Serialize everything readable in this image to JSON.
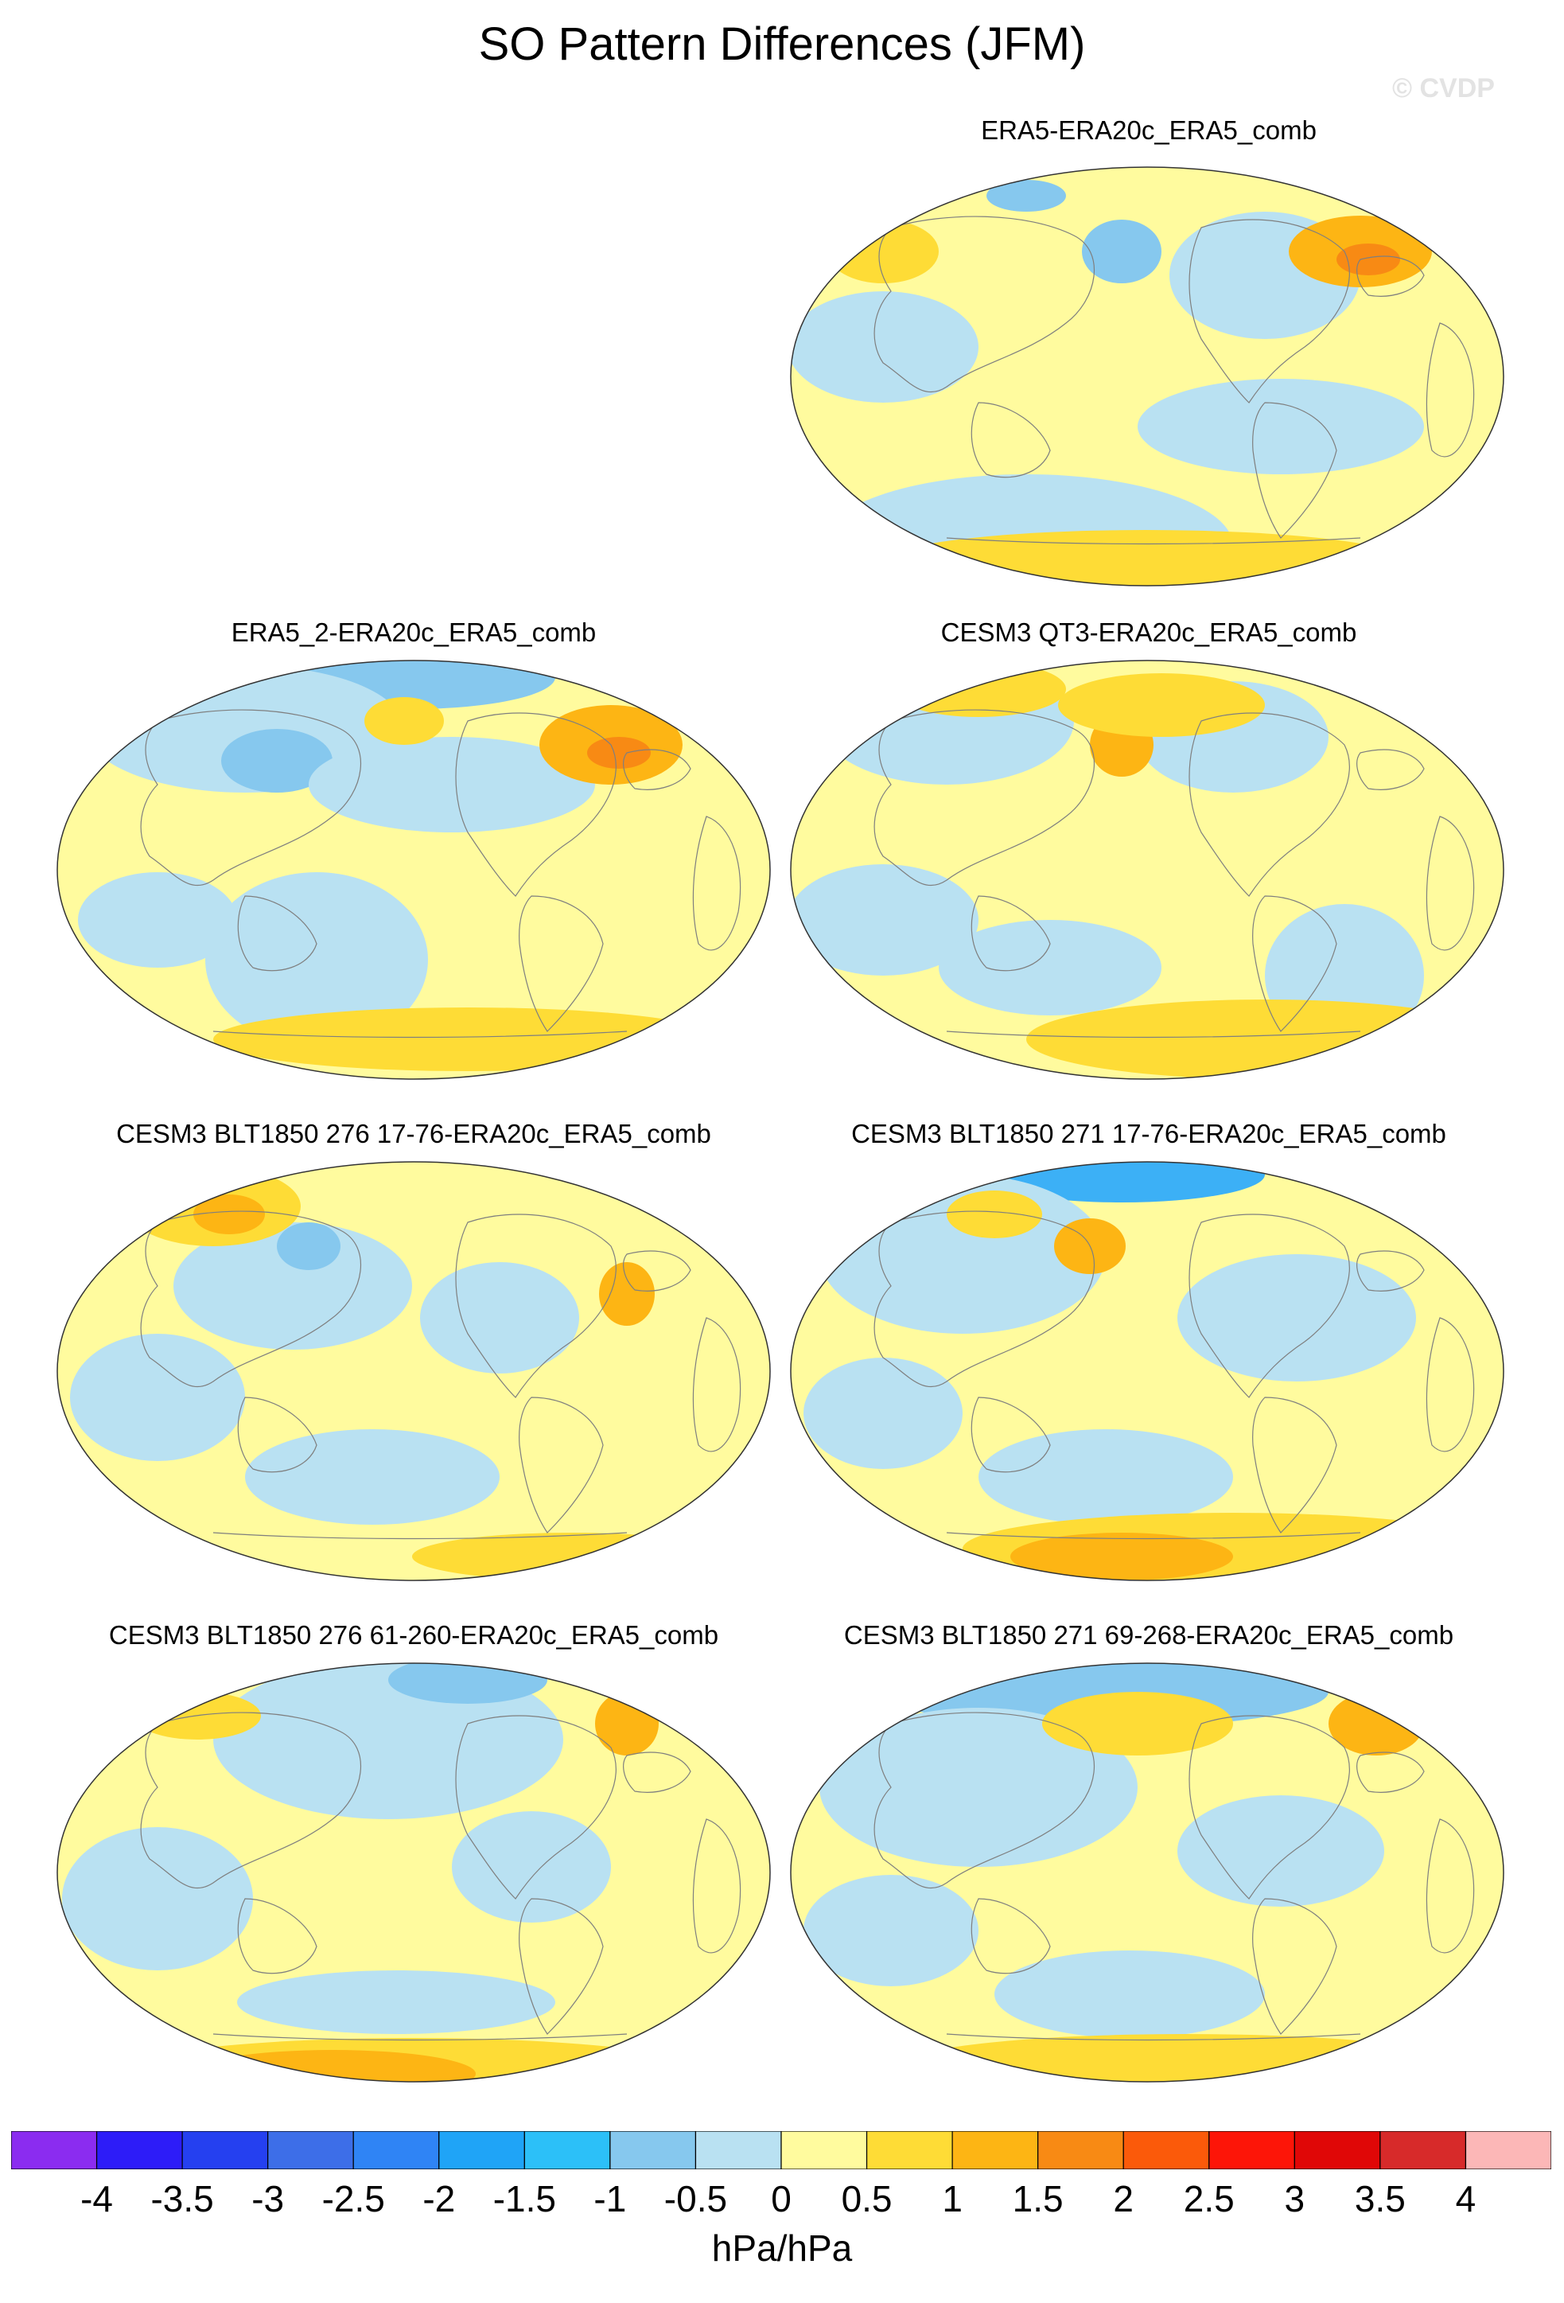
{
  "title": "SO Pattern Differences (JFM)",
  "watermark": "© CVDP",
  "colors": {
    "light_yellow": "#fffb9e",
    "yellow": "#fedc36",
    "orange": "#fdb514",
    "dark_orange": "#f88a14",
    "light_blue": "#b9e1f2",
    "blue": "#86c8ee",
    "mid_blue": "#3cb0f6",
    "coast": "#7f7f7f"
  },
  "panels": [
    {
      "title": "ERA5-ERA20c_ERA5_comb"
    },
    {
      "title": "ERA5_2-ERA20c_ERA5_comb"
    },
    {
      "title": "CESM3 QT3-ERA20c_ERA5_comb"
    },
    {
      "title": "CESM3 BLT1850 276 17-76-ERA20c_ERA5_comb"
    },
    {
      "title": "CESM3 BLT1850 271 17-76-ERA20c_ERA5_comb"
    },
    {
      "title": "CESM3 BLT1850 276 61-260-ERA20c_ERA5_comb"
    },
    {
      "title": "CESM3 BLT1850 271 69-268-ERA20c_ERA5_comb"
    }
  ],
  "colorbar": {
    "colors": [
      "#8b2cf0",
      "#2d1cf8",
      "#2540f0",
      "#3d6ee8",
      "#2f84f5",
      "#1fa4f7",
      "#2cc0f8",
      "#86c8ee",
      "#b9e1f2",
      "#fffb9e",
      "#fedc36",
      "#fdb514",
      "#f88a14",
      "#fb5a0a",
      "#fd1508",
      "#e00707",
      "#d72a2a",
      "#fcb7b7"
    ],
    "ticks": [
      "-4",
      "-3.5",
      "-3",
      "-2.5",
      "-2",
      "-1.5",
      "-1",
      "-0.5",
      "0",
      "0.5",
      "1",
      "1.5",
      "2",
      "2.5",
      "3",
      "3.5",
      "4"
    ],
    "units": "hPa/hPa"
  }
}
